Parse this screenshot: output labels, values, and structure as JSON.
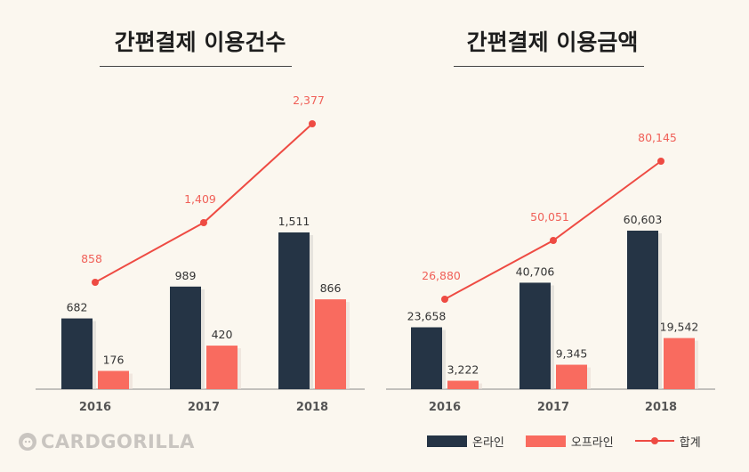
{
  "chart_data": [
    {
      "type": "bar",
      "title": "간편결제 이용건수",
      "categories": [
        "2016",
        "2017",
        "2018"
      ],
      "series": [
        {
          "name": "온라인",
          "values": [
            682,
            989,
            1511
          ],
          "labels": [
            "682",
            "989",
            "1,511"
          ]
        },
        {
          "name": "오프라인",
          "values": [
            176,
            420,
            866
          ],
          "labels": [
            "176",
            "420",
            "866"
          ]
        }
      ],
      "line": {
        "name": "합계",
        "values": [
          858,
          1409,
          2377
        ],
        "labels": [
          "858",
          "1,409",
          "2,377"
        ]
      }
    },
    {
      "type": "bar",
      "title": "간편결제 이용금액",
      "categories": [
        "2016",
        "2017",
        "2018"
      ],
      "series": [
        {
          "name": "온라인",
          "values": [
            23658,
            40706,
            60603
          ],
          "labels": [
            "23,658",
            "40,706",
            "60,603"
          ]
        },
        {
          "name": "오프라인",
          "values": [
            3222,
            9345,
            19542
          ],
          "labels": [
            "3,222",
            "9,345",
            "19,542"
          ]
        }
      ],
      "line": {
        "name": "합계",
        "values": [
          26880,
          50051,
          80145
        ],
        "labels": [
          "26,880",
          "50,051",
          "80,145"
        ]
      }
    }
  ],
  "legend": {
    "online": "온라인",
    "offline": "오프라인",
    "total": "합계"
  },
  "brand": "CARDGORILLA",
  "colors": {
    "online": "#253445",
    "offline": "#f96b5f",
    "total": "#ee4b43",
    "axis": "#888888"
  }
}
